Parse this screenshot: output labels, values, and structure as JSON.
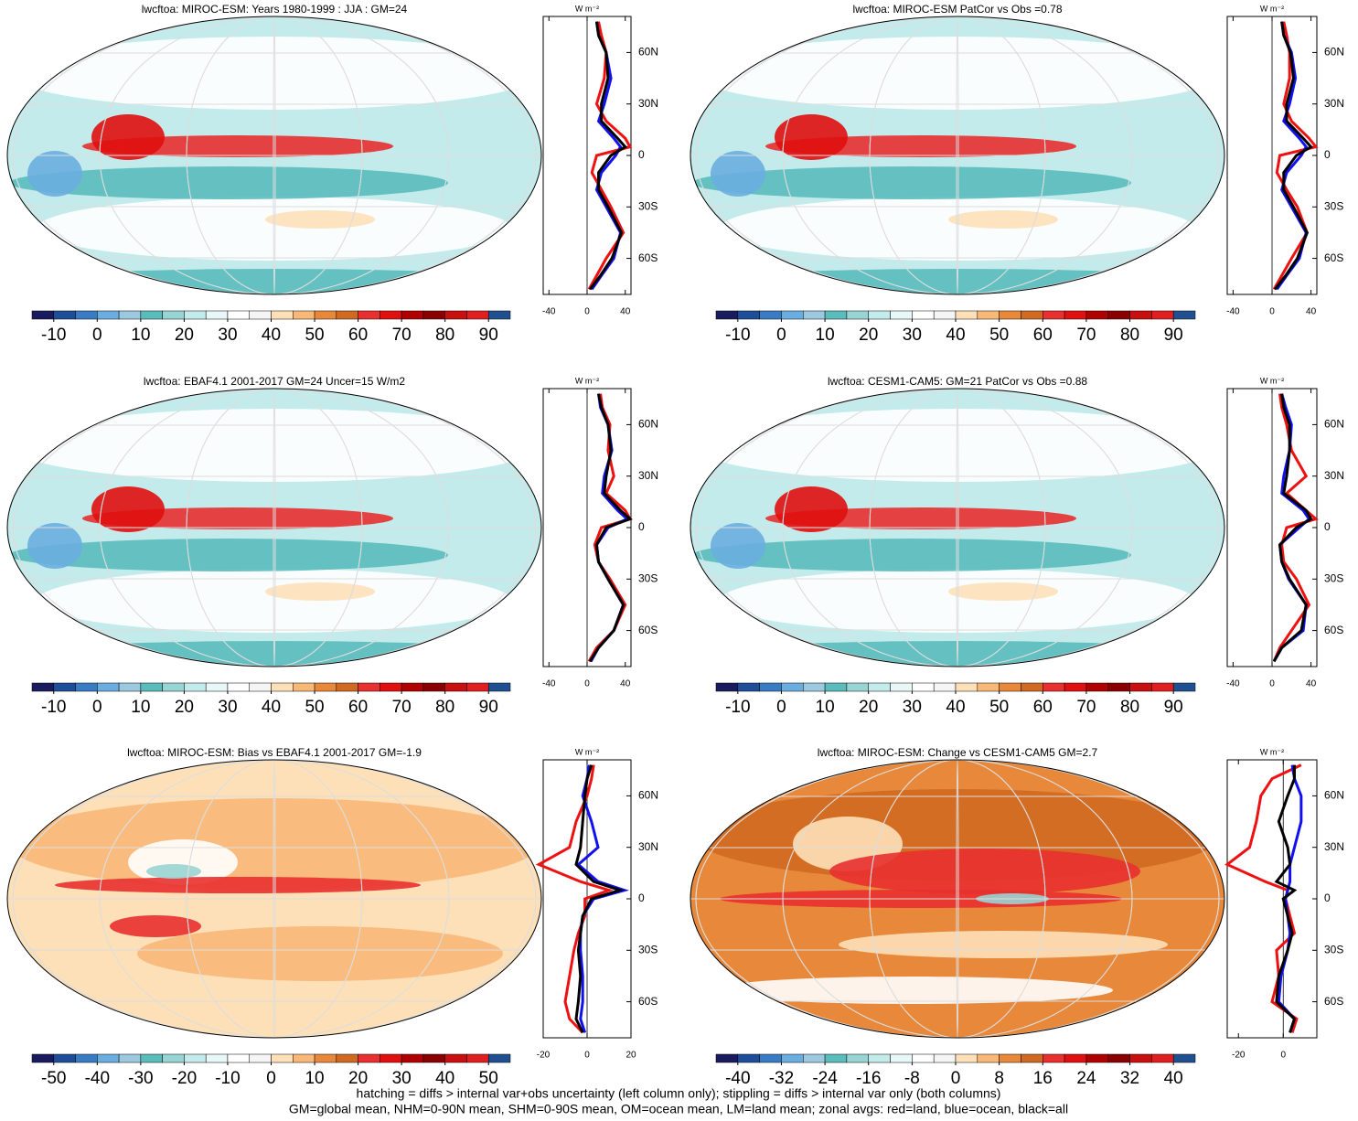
{
  "chart_data": [
    {
      "type": "line",
      "title": "lwcftoa: MIROC-ESM: Years 1980-1999 : JJA : GM=24",
      "map_style": "field",
      "colorbar": {
        "lim": [
          -15,
          95
        ],
        "ticks": [
          -10,
          0,
          10,
          20,
          30,
          40,
          50,
          60,
          70,
          80,
          90
        ]
      },
      "units": "W m⁻²",
      "xlim": [
        -46,
        46
      ],
      "xticks": [
        -40,
        0,
        40
      ],
      "ylim": [
        -81,
        81
      ],
      "yticks": [
        {
          "value": 60,
          "label": "60N"
        },
        {
          "value": 30,
          "label": "30N"
        },
        0,
        {
          "value": -30,
          "label": "30S"
        },
        {
          "value": -60,
          "label": "60S"
        }
      ],
      "lat": [
        78,
        70,
        60,
        45,
        30,
        20,
        10,
        5,
        0,
        -10,
        -20,
        -30,
        -45,
        -60,
        -70,
        -78
      ],
      "series": [
        {
          "color": "#ee1111",
          "values": [
            12,
            15,
            20,
            18,
            10,
            20,
            40,
            45,
            10,
            5,
            15,
            25,
            38,
            20,
            10,
            2
          ]
        },
        {
          "color": "#1111ee",
          "values": [
            10,
            12,
            20,
            25,
            18,
            12,
            28,
            35,
            30,
            15,
            10,
            20,
            35,
            28,
            15,
            5
          ]
        },
        {
          "color": "#000000",
          "values": [
            10,
            12,
            20,
            22,
            15,
            15,
            32,
            40,
            25,
            12,
            12,
            22,
            36,
            26,
            14,
            3
          ]
        }
      ]
    },
    {
      "type": "line",
      "title": "lwcftoa: MIROC-ESM PatCor vs Obs =0.78",
      "map_style": "field",
      "colorbar": {
        "lim": [
          -15,
          95
        ],
        "ticks": [
          -10,
          0,
          10,
          20,
          30,
          40,
          50,
          60,
          70,
          80,
          90
        ]
      },
      "units": "W m⁻²",
      "xlim": [
        -46,
        46
      ],
      "xticks": [
        -40,
        0,
        40
      ],
      "ylim": [
        -81,
        81
      ],
      "yticks": [
        {
          "value": 60,
          "label": "60N"
        },
        {
          "value": 30,
          "label": "30N"
        },
        0,
        {
          "value": -30,
          "label": "30S"
        },
        {
          "value": -60,
          "label": "60S"
        }
      ],
      "lat": [
        78,
        70,
        60,
        45,
        30,
        20,
        10,
        5,
        0,
        -10,
        -20,
        -30,
        -45,
        -60,
        -70,
        -78
      ],
      "series": [
        {
          "color": "#ee1111",
          "values": [
            12,
            15,
            18,
            18,
            12,
            20,
            38,
            45,
            8,
            5,
            15,
            26,
            36,
            20,
            10,
            2
          ]
        },
        {
          "color": "#1111ee",
          "values": [
            10,
            12,
            20,
            24,
            18,
            12,
            28,
            35,
            30,
            15,
            10,
            20,
            35,
            28,
            15,
            5
          ]
        },
        {
          "color": "#000000",
          "values": [
            10,
            12,
            19,
            22,
            15,
            15,
            32,
            40,
            25,
            12,
            12,
            22,
            36,
            26,
            14,
            3
          ]
        }
      ]
    },
    {
      "type": "line",
      "title": "lwcftoa: EBAF4.1 2001-2017 GM=24 Uncer=15 W/m2",
      "map_style": "field",
      "colorbar": {
        "lim": [
          -15,
          95
        ],
        "ticks": [
          -10,
          0,
          10,
          20,
          30,
          40,
          50,
          60,
          70,
          80,
          90
        ]
      },
      "units": "W m⁻²",
      "xlim": [
        -46,
        46
      ],
      "xticks": [
        -40,
        0,
        40
      ],
      "ylim": [
        -81,
        81
      ],
      "yticks": [
        {
          "value": 60,
          "label": "60N"
        },
        {
          "value": 30,
          "label": "30N"
        },
        0,
        {
          "value": -30,
          "label": "30S"
        },
        {
          "value": -60,
          "label": "60S"
        }
      ],
      "lat": [
        78,
        70,
        60,
        45,
        30,
        20,
        10,
        5,
        0,
        -10,
        -20,
        -30,
        -45,
        -60,
        -70,
        -78
      ],
      "series": [
        {
          "color": "#ee1111",
          "values": [
            14,
            16,
            24,
            22,
            28,
            20,
            40,
            45,
            15,
            8,
            12,
            24,
            40,
            28,
            10,
            2
          ]
        },
        {
          "color": "#1111ee",
          "values": [
            12,
            14,
            22,
            26,
            18,
            16,
            32,
            42,
            22,
            10,
            12,
            22,
            38,
            28,
            12,
            4
          ]
        },
        {
          "color": "#000000",
          "values": [
            12,
            15,
            22,
            25,
            20,
            18,
            35,
            45,
            20,
            10,
            12,
            22,
            38,
            28,
            12,
            3
          ]
        }
      ]
    },
    {
      "type": "line",
      "title": "lwcftoa: CESM1-CAM5: GM=21 PatCor vs Obs =0.88",
      "map_style": "field",
      "colorbar": {
        "lim": [
          -15,
          95
        ],
        "ticks": [
          -10,
          0,
          10,
          20,
          30,
          40,
          50,
          60,
          70,
          80,
          90
        ]
      },
      "units": "W m⁻²",
      "xlim": [
        -46,
        46
      ],
      "xticks": [
        -40,
        0,
        40
      ],
      "ylim": [
        -81,
        81
      ],
      "yticks": [
        {
          "value": 60,
          "label": "60N"
        },
        {
          "value": 30,
          "label": "30N"
        },
        0,
        {
          "value": -30,
          "label": "30S"
        },
        {
          "value": -60,
          "label": "60S"
        }
      ],
      "lat": [
        78,
        70,
        60,
        45,
        30,
        20,
        10,
        5,
        0,
        -10,
        -20,
        -30,
        -45,
        -60,
        -70,
        -78
      ],
      "series": [
        {
          "color": "#ee1111",
          "values": [
            8,
            10,
            15,
            20,
            35,
            15,
            35,
            45,
            15,
            10,
            12,
            25,
            38,
            20,
            8,
            2
          ]
        },
        {
          "color": "#1111ee",
          "values": [
            10,
            14,
            20,
            18,
            12,
            10,
            32,
            38,
            28,
            8,
            10,
            17,
            35,
            32,
            10,
            2
          ]
        },
        {
          "color": "#000000",
          "values": [
            10,
            12,
            18,
            18,
            15,
            12,
            35,
            40,
            25,
            8,
            10,
            18,
            35,
            30,
            10,
            2
          ]
        }
      ]
    },
    {
      "type": "line",
      "title": "lwcftoa: MIROC-ESM: Bias vs EBAF4.1 2001-2017 GM=-1.9",
      "map_style": "bias",
      "colorbar": {
        "lim": [
          -55,
          55
        ],
        "ticks": [
          -50,
          -40,
          -30,
          -20,
          -10,
          0,
          10,
          20,
          30,
          40,
          50
        ]
      },
      "units": "W m⁻²",
      "xlim": [
        -20,
        20
      ],
      "xticks": [
        -20,
        0,
        20
      ],
      "ylim": [
        -81,
        81
      ],
      "yticks": [
        {
          "value": 60,
          "label": "60N"
        },
        {
          "value": 30,
          "label": "30N"
        },
        0,
        {
          "value": -30,
          "label": "30S"
        },
        {
          "value": -60,
          "label": "60S"
        }
      ],
      "lat": [
        78,
        70,
        60,
        45,
        30,
        20,
        10,
        5,
        0,
        -10,
        -20,
        -30,
        -45,
        -60,
        -70,
        -78
      ],
      "series": [
        {
          "color": "#ee1111",
          "values": [
            3,
            2,
            0,
            -5,
            -8,
            -22,
            -3,
            10,
            -1,
            -1,
            -4,
            -6,
            -8,
            -10,
            -8,
            -2
          ]
        },
        {
          "color": "#1111ee",
          "values": [
            1,
            0,
            -2,
            2,
            5,
            -4,
            5,
            17,
            3,
            -2,
            -3,
            -3,
            -2,
            -2,
            -3,
            -1
          ]
        },
        {
          "color": "#000000",
          "values": [
            2,
            0,
            -1,
            -2,
            -3,
            -5,
            3,
            15,
            2,
            -2,
            -3,
            -4,
            -3,
            -4,
            -5,
            -2
          ]
        }
      ]
    },
    {
      "type": "line",
      "title": "lwcftoa: MIROC-ESM: Change vs CESM1-CAM5 GM=2.7",
      "map_style": "change",
      "colorbar": {
        "lim": [
          -44,
          44
        ],
        "ticks": [
          -40,
          -32,
          -24,
          -16,
          -8,
          0,
          8,
          16,
          24,
          32,
          40
        ]
      },
      "units": "W m⁻²",
      "xlim": [
        -25,
        15
      ],
      "xticks": [
        -20,
        0
      ],
      "ylim": [
        -81,
        81
      ],
      "yticks": [
        {
          "value": 60,
          "label": "60N"
        },
        {
          "value": 30,
          "label": "30N"
        },
        0,
        {
          "value": -30,
          "label": "30S"
        },
        {
          "value": -60,
          "label": "60S"
        }
      ],
      "lat": [
        78,
        70,
        60,
        45,
        30,
        20,
        10,
        5,
        0,
        -10,
        -20,
        -30,
        -45,
        -60,
        -70,
        -78
      ],
      "series": [
        {
          "color": "#ee1111",
          "values": [
            8,
            -5,
            -10,
            -12,
            -15,
            -25,
            -8,
            2,
            1,
            3,
            5,
            -3,
            -2,
            -5,
            6,
            4
          ]
        },
        {
          "color": "#1111ee",
          "values": [
            4,
            5,
            8,
            8,
            5,
            3,
            3,
            2,
            1,
            2,
            3,
            2,
            -1,
            -2,
            5,
            3
          ]
        },
        {
          "color": "#000000",
          "values": [
            5,
            5,
            2,
            -2,
            2,
            3,
            -3,
            5,
            0,
            2,
            4,
            2,
            -2,
            -3,
            5,
            3
          ]
        }
      ]
    }
  ],
  "palette": [
    "#1a1a5e",
    "#1f4e99",
    "#3a7cc4",
    "#6aaee0",
    "#9cc9e0",
    "#5bbcbc",
    "#99d4d4",
    "#c4ebeb",
    "#e8f8f8",
    "#ffffff",
    "#f5f5f5",
    "#fde0b8",
    "#f8b878",
    "#e8883a",
    "#d06a22",
    "#e83030",
    "#e01010",
    "#b00000",
    "#8a0000",
    "#c81010",
    "#e02020",
    "#205090"
  ],
  "footer": [
    "hatching = diffs > internal var+obs uncertainty (left column only); stippling = diffs > internal var only (both columns)",
    "GM=global mean, NHM=0-90N mean, SHM=0-90S mean, OM=ocean mean, LM=land mean; zonal avgs: red=land, blue=ocean, black=all"
  ]
}
